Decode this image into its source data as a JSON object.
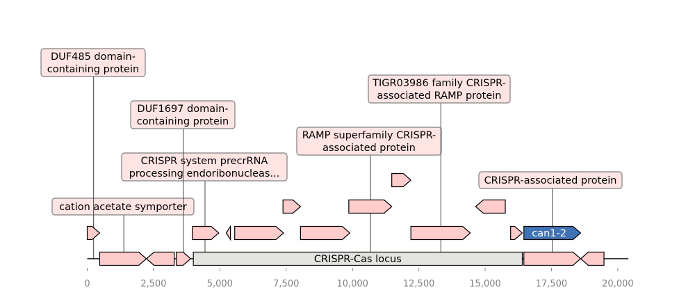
{
  "diagram": {
    "colors": {
      "gene_fill": "#ffcccc",
      "highlight_fill": "#4173b4",
      "locus_fill": "#e3e3df",
      "label_fill": "#ffe4e4",
      "label_border": "#7f7f7f",
      "tick_text": "#808080"
    },
    "axis": {
      "xlim": [
        0,
        20000
      ],
      "ticks": [
        {
          "value": 0,
          "label": "0"
        },
        {
          "value": 2500,
          "label": "2,500"
        },
        {
          "value": 5000,
          "label": "5,000"
        },
        {
          "value": 7500,
          "label": "7,500"
        },
        {
          "value": 10000,
          "label": "10,000"
        },
        {
          "value": 12500,
          "label": "12,500"
        },
        {
          "value": 15000,
          "label": "15,000"
        },
        {
          "value": 17500,
          "label": "17,500"
        },
        {
          "value": 20000,
          "label": "20,000"
        }
      ]
    },
    "locus": {
      "label": "CRISPR-Cas locus",
      "start": 4000,
      "end": 16400
    },
    "features": [
      {
        "start": 0,
        "end": 470,
        "strand": 1,
        "level": 1
      },
      {
        "start": 470,
        "end": 2230,
        "strand": 1,
        "level": 0
      },
      {
        "start": 2230,
        "end": 3280,
        "strand": -1,
        "level": 0
      },
      {
        "start": 3360,
        "end": 3900,
        "strand": 1,
        "level": 0
      },
      {
        "start": 3960,
        "end": 4960,
        "strand": 1,
        "level": 1
      },
      {
        "start": 5240,
        "end": 5400,
        "strand": -1,
        "level": 1
      },
      {
        "start": 5560,
        "end": 7400,
        "strand": 1,
        "level": 1
      },
      {
        "start": 7380,
        "end": 8040,
        "strand": 1,
        "level": 2
      },
      {
        "start": 8040,
        "end": 9900,
        "strand": 1,
        "level": 1
      },
      {
        "start": 9860,
        "end": 11480,
        "strand": 1,
        "level": 2
      },
      {
        "start": 11480,
        "end": 12200,
        "strand": 1,
        "level": 3
      },
      {
        "start": 12200,
        "end": 14440,
        "strand": 1,
        "level": 1
      },
      {
        "start": 14640,
        "end": 15760,
        "strand": -1,
        "level": 2
      },
      {
        "start": 15960,
        "end": 16400,
        "strand": 1,
        "level": 1
      },
      {
        "start": 16460,
        "end": 18600,
        "strand": 1,
        "level": 1,
        "highlight": true,
        "label": "can1-2"
      },
      {
        "start": 16460,
        "end": 18600,
        "strand": 1,
        "level": 0
      },
      {
        "start": 18600,
        "end": 19480,
        "strand": -1,
        "level": 0
      }
    ],
    "annotations": [
      {
        "lines": [
          "cation acetate symporter"
        ],
        "anchor": 1380,
        "tier": 0
      },
      {
        "lines": [
          "CRISPR system precrRNA",
          "processing endoribonucleas..."
        ],
        "anchor": 4440,
        "tier": 1
      },
      {
        "lines": [
          "DUF1697 domain-",
          "containing protein"
        ],
        "anchor": 3620,
        "tier": 2
      },
      {
        "lines": [
          "DUF485 domain-",
          "containing protein"
        ],
        "anchor": 240,
        "tier": 3
      },
      {
        "lines": [
          "RAMP superfamily CRISPR-",
          "associated protein"
        ],
        "anchor": 10680,
        "tier": 4
      },
      {
        "lines": [
          "TIGR03986 family CRISPR-",
          "associated RAMP protein"
        ],
        "anchor": 13330,
        "tier": 5
      },
      {
        "lines": [
          "CRISPR-associated protein"
        ],
        "anchor": 17530,
        "tier": 6
      }
    ]
  }
}
